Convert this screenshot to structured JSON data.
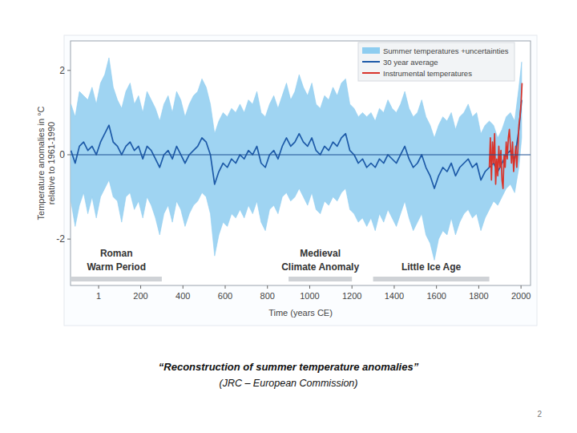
{
  "chart_data": {
    "type": "line",
    "caption": "“Reconstruction of summer temperature anomalies”",
    "source": "(JRC – European Commission)",
    "page": 2,
    "x_label": "Time (years CE)",
    "y_label": [
      "Temperature anomalies in °C",
      "relative to 1961-1990"
    ],
    "xlim": [
      -132,
      2045
    ],
    "ylim": [
      -3.1,
      2.7
    ],
    "xticks": [
      1,
      200,
      400,
      600,
      800,
      1000,
      1200,
      1400,
      1600,
      1800,
      2000
    ],
    "yticks": [
      -2,
      0,
      2
    ],
    "grid": false,
    "legend": "top-right",
    "reference_value": 0,
    "periods": [
      {
        "label": [
          "Roman",
          "Warm Period"
        ],
        "start": -130,
        "end": 300
      },
      {
        "label": [
          "Medieval",
          "Climate Anomaly"
        ],
        "start": 900,
        "end": 1200
      },
      {
        "label": [
          "Little Ice Age"
        ],
        "start": 1300,
        "end": 1850
      }
    ],
    "x": [
      -130,
      -110,
      -90,
      -70,
      -50,
      -30,
      -10,
      10,
      30,
      50,
      70,
      90,
      110,
      130,
      150,
      170,
      190,
      210,
      230,
      250,
      270,
      290,
      310,
      330,
      350,
      370,
      390,
      410,
      430,
      450,
      470,
      490,
      510,
      530,
      550,
      570,
      590,
      610,
      630,
      650,
      670,
      690,
      710,
      730,
      750,
      770,
      790,
      810,
      830,
      850,
      870,
      890,
      910,
      930,
      950,
      970,
      990,
      1010,
      1030,
      1050,
      1070,
      1090,
      1110,
      1130,
      1150,
      1170,
      1190,
      1210,
      1230,
      1250,
      1270,
      1290,
      1310,
      1330,
      1350,
      1370,
      1390,
      1410,
      1430,
      1450,
      1470,
      1490,
      1510,
      1530,
      1550,
      1570,
      1590,
      1610,
      1630,
      1650,
      1670,
      1690,
      1710,
      1730,
      1750,
      1770,
      1790,
      1810,
      1830,
      1850,
      1870,
      1890,
      1910,
      1930,
      1950,
      1970,
      1990,
      2003
    ],
    "series": [
      {
        "name": "Summer temperatures +uncertainties",
        "type": "band",
        "color": "#8ecdf0",
        "upper": [
          1.2,
          0.9,
          1.5,
          1.4,
          1.3,
          1.6,
          1.2,
          1.7,
          1.9,
          2.3,
          1.6,
          1.3,
          1.1,
          1.5,
          1.7,
          1.2,
          1.4,
          1.0,
          1.5,
          1.3,
          1.1,
          0.8,
          1.2,
          1.4,
          1.0,
          1.5,
          1.3,
          0.9,
          1.2,
          1.4,
          1.5,
          1.8,
          1.6,
          1.2,
          0.5,
          0.8,
          1.0,
          0.9,
          1.1,
          1.0,
          1.2,
          1.0,
          1.3,
          1.2,
          1.5,
          1.0,
          0.9,
          1.2,
          1.4,
          1.1,
          1.4,
          1.7,
          1.3,
          1.5,
          1.9,
          1.6,
          1.4,
          1.7,
          1.2,
          1.1,
          1.4,
          1.3,
          1.6,
          1.4,
          1.7,
          1.8,
          1.2,
          1.1,
          0.9,
          1.0,
          0.9,
          1.0,
          0.8,
          1.1,
          1.0,
          1.3,
          1.1,
          1.0,
          1.2,
          1.5,
          1.1,
          0.9,
          1.0,
          1.3,
          0.9,
          0.7,
          0.4,
          0.7,
          0.9,
          0.8,
          1.0,
          0.6,
          0.9,
          1.0,
          1.2,
          0.9,
          1.0,
          0.5,
          0.7,
          0.8,
          0.7,
          0.4,
          0.6,
          0.9,
          1.0,
          0.8,
          1.6,
          2.2
        ],
        "lower": [
          -1.1,
          -1.7,
          -1.2,
          -0.9,
          -1.4,
          -1.0,
          -1.5,
          -1.0,
          -0.8,
          -0.6,
          -1.0,
          -1.1,
          -1.6,
          -1.0,
          -0.9,
          -1.3,
          -1.1,
          -1.5,
          -1.0,
          -1.2,
          -1.5,
          -1.9,
          -1.4,
          -1.2,
          -1.6,
          -1.1,
          -1.3,
          -1.7,
          -1.4,
          -1.2,
          -1.1,
          -0.9,
          -1.0,
          -1.4,
          -2.4,
          -1.9,
          -1.6,
          -1.7,
          -1.4,
          -1.5,
          -1.3,
          -1.5,
          -1.2,
          -1.4,
          -1.1,
          -1.6,
          -1.8,
          -1.3,
          -1.2,
          -1.4,
          -1.0,
          -0.9,
          -1.1,
          -1.0,
          -0.8,
          -1.0,
          -1.2,
          -0.9,
          -1.3,
          -1.4,
          -1.1,
          -1.2,
          -1.0,
          -1.1,
          -0.9,
          -0.8,
          -1.3,
          -1.4,
          -1.6,
          -1.5,
          -1.7,
          -1.5,
          -1.8,
          -1.4,
          -1.6,
          -1.3,
          -1.5,
          -1.7,
          -1.4,
          -1.1,
          -1.5,
          -1.8,
          -1.6,
          -1.4,
          -1.9,
          -2.1,
          -2.5,
          -2.0,
          -1.8,
          -1.9,
          -1.5,
          -1.9,
          -1.6,
          -1.4,
          -1.3,
          -1.5,
          -1.4,
          -1.8,
          -1.5,
          -1.3,
          -1.1,
          -1.2,
          -1.0,
          -0.8,
          -0.7,
          -0.9,
          -0.3,
          0.4
        ]
      },
      {
        "name": "30 year average",
        "type": "line",
        "color": "#1d5aa8",
        "values": [
          0.1,
          -0.2,
          0.2,
          0.3,
          0.1,
          0.2,
          0.0,
          0.3,
          0.5,
          0.7,
          0.3,
          0.2,
          0.0,
          0.2,
          0.3,
          0.1,
          0.2,
          -0.1,
          0.2,
          0.1,
          -0.1,
          -0.3,
          0.0,
          0.1,
          -0.1,
          0.2,
          0.0,
          -0.2,
          0.0,
          0.1,
          0.2,
          0.4,
          0.3,
          0.0,
          -0.7,
          -0.4,
          -0.2,
          -0.3,
          -0.1,
          -0.2,
          0.0,
          -0.1,
          0.1,
          0.0,
          0.2,
          -0.2,
          -0.3,
          0.0,
          0.1,
          -0.1,
          0.2,
          0.4,
          0.2,
          0.3,
          0.5,
          0.3,
          0.2,
          0.4,
          0.1,
          0.0,
          0.2,
          0.1,
          0.3,
          0.2,
          0.4,
          0.5,
          0.1,
          0.0,
          -0.2,
          -0.1,
          -0.3,
          -0.2,
          -0.3,
          -0.1,
          -0.2,
          0.0,
          -0.1,
          -0.2,
          0.0,
          0.2,
          -0.1,
          -0.3,
          -0.2,
          0.0,
          -0.3,
          -0.5,
          -0.8,
          -0.5,
          -0.3,
          -0.4,
          -0.2,
          -0.5,
          -0.3,
          -0.2,
          -0.1,
          -0.3,
          -0.2,
          -0.6,
          -0.4,
          -0.3,
          -0.2,
          -0.4,
          -0.2,
          0.0,
          0.1,
          -0.1,
          0.6,
          1.3
        ]
      },
      {
        "name": "Instrumental temperatures",
        "type": "line",
        "color": "#d9342b",
        "x": [
          1850,
          1855,
          1860,
          1865,
          1870,
          1875,
          1880,
          1885,
          1890,
          1895,
          1900,
          1905,
          1910,
          1915,
          1920,
          1925,
          1930,
          1935,
          1940,
          1945,
          1950,
          1955,
          1960,
          1965,
          1970,
          1975,
          1980,
          1985,
          1990,
          1995,
          2000,
          2005
        ],
        "values": [
          -0.3,
          0.4,
          -0.6,
          0.3,
          -0.2,
          0.5,
          -0.7,
          -0.1,
          -0.5,
          0.2,
          -0.3,
          0.1,
          -0.6,
          -0.8,
          0.0,
          -0.3,
          0.3,
          -0.1,
          0.4,
          0.6,
          0.2,
          -0.2,
          0.3,
          -0.4,
          -0.1,
          0.2,
          -0.3,
          0.1,
          0.7,
          0.9,
          1.2,
          1.7
        ]
      }
    ]
  }
}
